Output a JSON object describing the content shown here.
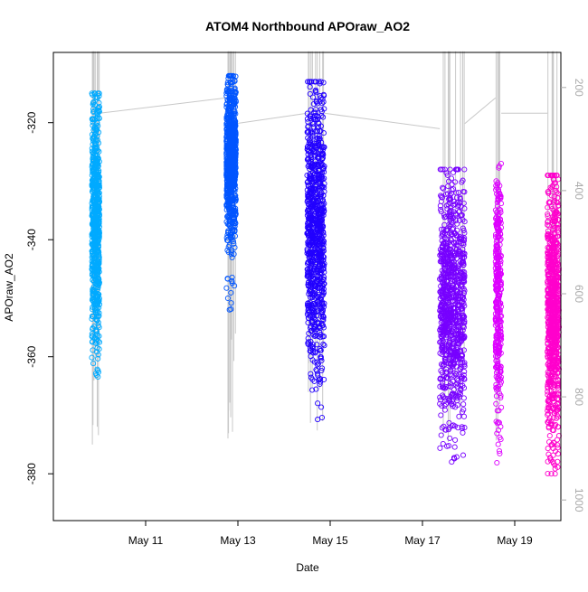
{
  "chart_data": {
    "type": "scatter",
    "title": "ATOM4 Northbound APOraw_AO2",
    "xlabel": "Date",
    "ylabel": "APOraw_AO2",
    "x_ticks": [
      "May 11",
      "May 13",
      "May 15",
      "May 17",
      "May 19"
    ],
    "y_ticks": [
      -320,
      -340,
      -360,
      -380
    ],
    "y2_ticks": [
      200,
      400,
      600,
      800,
      1000
    ],
    "xlim": [
      "2018-05-09",
      "2018-05-20"
    ],
    "ylim": [
      -388,
      -308
    ],
    "y2lim": [
      1040,
      132
    ],
    "grid": false,
    "legend": "none",
    "secondary_series": {
      "description": "altitude trace (right axis), thin gray lines",
      "color": "#c8c8c8"
    },
    "series": [
      {
        "x_start": "2018-05-09 20:00",
        "x_end": "2018-05-10 00:00",
        "y_min": -364,
        "y_max": -315,
        "y_center": -337,
        "color": "#00aaff",
        "count": 700
      },
      {
        "x_start": "2018-05-12 18:00",
        "x_end": "2018-05-12 23:00",
        "y_min": -352,
        "y_max": -312,
        "y_center": -326,
        "color": "#0055ff",
        "count": 800
      },
      {
        "x_start": "2018-05-14 12:00",
        "x_end": "2018-05-14 21:00",
        "y_min": -373,
        "y_max": -313,
        "y_center": -338,
        "color": "#2200ff",
        "count": 900
      },
      {
        "x_start": "2018-05-17 09:00",
        "x_end": "2018-05-17 22:00",
        "y_min": -378,
        "y_max": -328,
        "y_center": -350,
        "color": "#7700ff",
        "count": 900
      },
      {
        "x_start": "2018-05-18 14:00",
        "x_end": "2018-05-18 17:00",
        "y_min": -385,
        "y_max": -327,
        "y_center": -350,
        "color": "#dd00ff",
        "count": 350
      },
      {
        "x_start": "2018-05-19 17:00",
        "x_end": "2018-05-19 23:00",
        "y_min": -380,
        "y_max": -329,
        "y_center": -352,
        "color": "#ff00cc",
        "count": 800
      }
    ]
  }
}
